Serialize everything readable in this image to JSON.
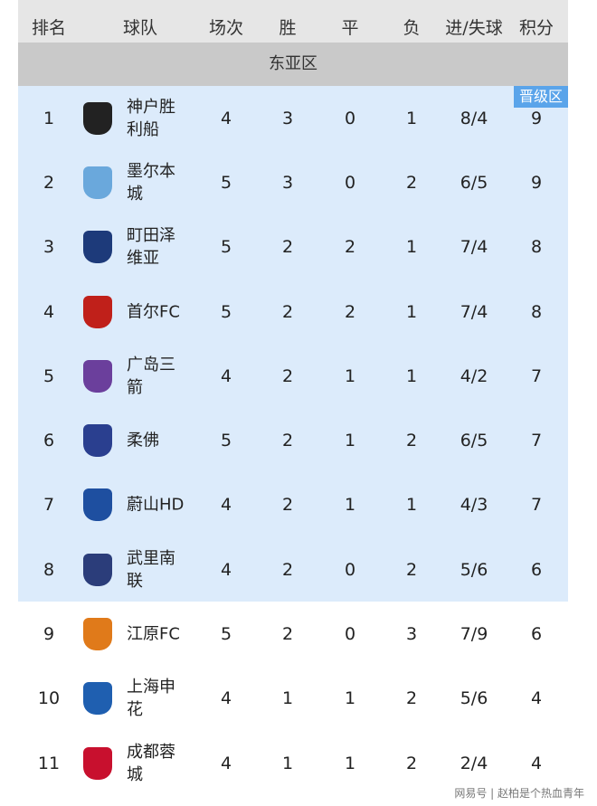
{
  "headers": [
    "排名",
    "球队",
    "场次",
    "胜",
    "平",
    "负",
    "进/失球",
    "积分"
  ],
  "region": "东亚区",
  "badge": "晋级区",
  "colors": {
    "qualified": "#dcebfb",
    "badge": "#5aa4ea",
    "header": "#e6e6e6",
    "region": "#c9c9c9"
  },
  "rows": [
    {
      "rank": "1",
      "team": "神户胜利船",
      "p": "4",
      "w": "3",
      "d": "0",
      "l": "1",
      "g": "8/4",
      "pts": "9",
      "logo": "#222"
    },
    {
      "rank": "2",
      "team": "墨尔本城",
      "p": "5",
      "w": "3",
      "d": "0",
      "l": "2",
      "g": "6/5",
      "pts": "9",
      "logo": "#6aa8dc"
    },
    {
      "rank": "3",
      "team": "町田泽维亚",
      "p": "5",
      "w": "2",
      "d": "2",
      "l": "1",
      "g": "7/4",
      "pts": "8",
      "logo": "#1d3a7a"
    },
    {
      "rank": "4",
      "team": "首尔FC",
      "p": "5",
      "w": "2",
      "d": "2",
      "l": "1",
      "g": "7/4",
      "pts": "8",
      "logo": "#c0201a"
    },
    {
      "rank": "5",
      "team": "广岛三箭",
      "p": "4",
      "w": "2",
      "d": "1",
      "l": "1",
      "g": "4/2",
      "pts": "7",
      "logo": "#6b3f9c"
    },
    {
      "rank": "6",
      "team": "柔佛",
      "p": "5",
      "w": "2",
      "d": "1",
      "l": "2",
      "g": "6/5",
      "pts": "7",
      "logo": "#2a3f8f"
    },
    {
      "rank": "7",
      "team": "蔚山HD",
      "p": "4",
      "w": "2",
      "d": "1",
      "l": "1",
      "g": "4/3",
      "pts": "7",
      "logo": "#1e4fa0"
    },
    {
      "rank": "8",
      "team": "武里南联",
      "p": "4",
      "w": "2",
      "d": "0",
      "l": "2",
      "g": "5/6",
      "pts": "6",
      "logo": "#2b3d7a"
    },
    {
      "rank": "9",
      "team": "江原FC",
      "p": "5",
      "w": "2",
      "d": "0",
      "l": "3",
      "g": "7/9",
      "pts": "6",
      "logo": "#e07a1a"
    },
    {
      "rank": "10",
      "team": "上海申花",
      "p": "4",
      "w": "1",
      "d": "1",
      "l": "2",
      "g": "5/6",
      "pts": "4",
      "logo": "#1f5fb0"
    },
    {
      "rank": "11",
      "team": "成都蓉城",
      "p": "4",
      "w": "1",
      "d": "1",
      "l": "2",
      "g": "2/4",
      "pts": "4",
      "logo": "#c8102e"
    }
  ],
  "watermark": "网易号 | 赵柏是个热血青年"
}
